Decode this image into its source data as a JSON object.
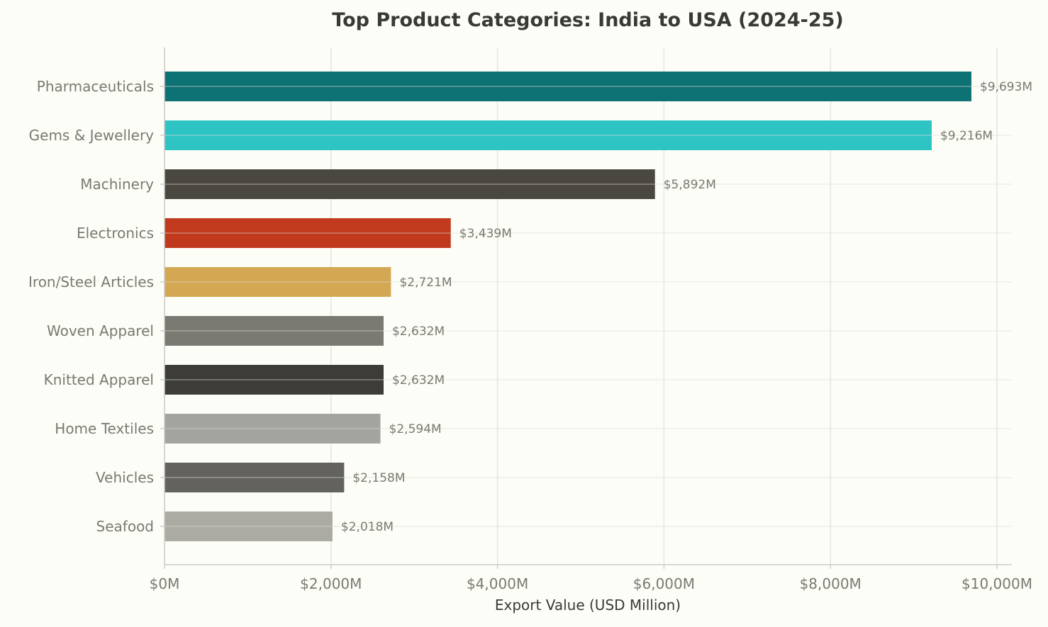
{
  "chart_data": {
    "type": "bar",
    "orientation": "horizontal",
    "title": "Top Product Categories: India to USA (2024-25)",
    "xlabel": "Export Value (USD Million)",
    "ylabel": "",
    "xlim": [
      0,
      10000
    ],
    "xticks": [
      0,
      2000,
      4000,
      6000,
      8000,
      10000
    ],
    "xtick_labels": [
      "$0M",
      "$2,000M",
      "$4,000M",
      "$6,000M",
      "$8,000M",
      "$10,000M"
    ],
    "grid": true,
    "categories": [
      "Pharmaceuticals",
      "Gems & Jewellery",
      "Machinery",
      "Electronics",
      "Iron/Steel Articles",
      "Woven Apparel",
      "Knitted Apparel",
      "Home Textiles",
      "Vehicles",
      "Seafood"
    ],
    "values": [
      9693,
      9216,
      5892,
      3439,
      2721,
      2632,
      2632,
      2594,
      2158,
      2018
    ],
    "data_labels": [
      "$9,693M",
      "$9,216M",
      "$5,892M",
      "$3,439M",
      "$2,721M",
      "$2,632M",
      "$2,632M",
      "$2,594M",
      "$2,158M",
      "$2,018M"
    ],
    "colors": [
      "#0e7173",
      "#2ec4c4",
      "#4a4740",
      "#c13a1d",
      "#d4a853",
      "#7a7a72",
      "#3d3c37",
      "#a4a49e",
      "#63625d",
      "#abaaa3"
    ]
  }
}
